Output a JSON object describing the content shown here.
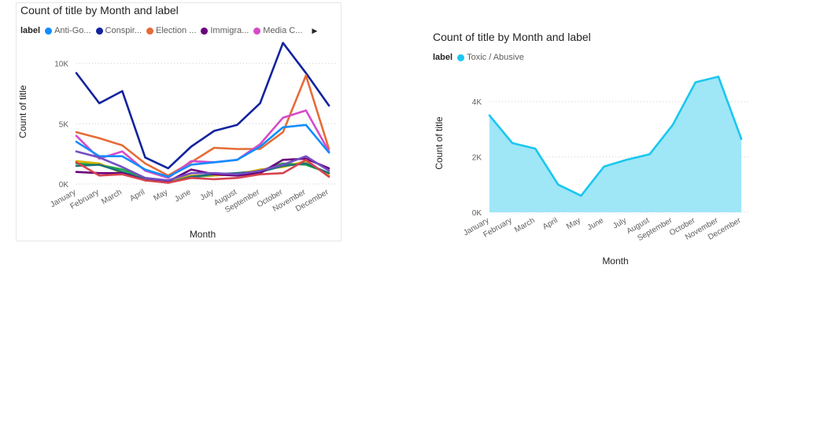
{
  "chart_data": [
    {
      "type": "line",
      "title": "Count of title by Month and label",
      "legend_title": "label",
      "xlabel": "Month",
      "ylabel": "Count of title",
      "ylim": [
        0,
        12000
      ],
      "yticks": [
        0,
        5000,
        10000
      ],
      "ytick_labels": [
        "0K",
        "5K",
        "10K"
      ],
      "categories": [
        "January",
        "February",
        "March",
        "April",
        "May",
        "June",
        "July",
        "August",
        "September",
        "October",
        "November",
        "December"
      ],
      "grid": true,
      "legend_placement": "top",
      "series": [
        {
          "name": "Conspir...",
          "color": "#12239E",
          "values": [
            9200,
            6700,
            7700,
            2200,
            1300,
            3100,
            4400,
            4900,
            6700,
            11700,
            9200,
            6500
          ]
        },
        {
          "name": "Election ...",
          "color": "#E66C37",
          "values": [
            4300,
            3800,
            3200,
            1700,
            700,
            1800,
            3000,
            2900,
            2900,
            4300,
            9000,
            2900
          ]
        },
        {
          "name": "Media C...",
          "color": "#D64BC8",
          "values": [
            4000,
            2100,
            2700,
            1100,
            500,
            1900,
            1800,
            2000,
            3300,
            5500,
            6100,
            2700
          ]
        },
        {
          "name": "Anti-Go...",
          "color": "#118DFF",
          "values": [
            3500,
            2300,
            2300,
            1200,
            600,
            1600,
            1800,
            2000,
            3100,
            4700,
            4900,
            2600
          ]
        },
        {
          "name": "",
          "color": "#1AAB40",
          "values": [
            1700,
            1600,
            1200,
            500,
            200,
            600,
            700,
            900,
            1100,
            1700,
            1600,
            900
          ]
        },
        {
          "name": "",
          "color": "#D9B300",
          "values": [
            1900,
            1700,
            900,
            500,
            200,
            700,
            700,
            800,
            1200,
            1400,
            1900,
            700
          ]
        },
        {
          "name": "",
          "color": "#197278",
          "values": [
            1500,
            1600,
            1000,
            400,
            100,
            600,
            800,
            900,
            1000,
            1500,
            1700,
            900
          ]
        },
        {
          "name": "Immigra...",
          "color": "#6B007B",
          "values": [
            1000,
            900,
            900,
            300,
            200,
            1200,
            800,
            700,
            900,
            2000,
            2100,
            1300
          ]
        },
        {
          "name": "",
          "color": "#744EC2",
          "values": [
            2700,
            2200,
            1400,
            500,
            300,
            900,
            900,
            800,
            1100,
            1600,
            2300,
            1100
          ]
        },
        {
          "name": "",
          "color": "#D64550",
          "values": [
            1800,
            700,
            800,
            300,
            100,
            500,
            400,
            500,
            800,
            900,
            2000,
            600
          ]
        }
      ]
    },
    {
      "type": "area",
      "title": "Count of title by Month and label",
      "legend_title": "label",
      "xlabel": "Month",
      "ylabel": "Count of title",
      "ylim": [
        0,
        5000
      ],
      "yticks": [
        0,
        2000,
        4000
      ],
      "ytick_labels": [
        "0K",
        "2K",
        "4K"
      ],
      "categories": [
        "January",
        "February",
        "March",
        "April",
        "May",
        "June",
        "July",
        "August",
        "September",
        "October",
        "November",
        "December"
      ],
      "grid": true,
      "legend_placement": "top",
      "series": [
        {
          "name": "Toxic / Abusive",
          "color": "#1AC7EE",
          "fill": "#9FE6F7",
          "values": [
            3500,
            2500,
            2300,
            1000,
            600,
            1650,
            1900,
            2100,
            3150,
            4700,
            4900,
            2650
          ]
        }
      ]
    }
  ],
  "legend_more_icon": "chevron-right-icon"
}
